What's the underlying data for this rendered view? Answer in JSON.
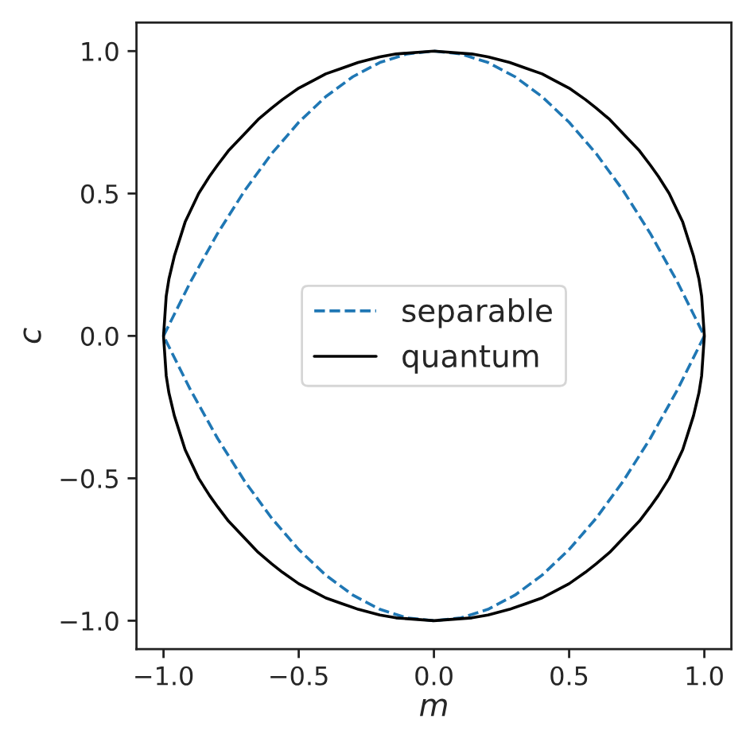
{
  "chart_data": {
    "type": "line",
    "xlabel": "m",
    "ylabel": "c",
    "xlim": [
      -1.1,
      1.1
    ],
    "ylim": [
      -1.1,
      1.1
    ],
    "xticks": [
      {
        "value": -1,
        "label": "−1.0"
      },
      {
        "value": -0.5,
        "label": "−0.5"
      },
      {
        "value": 0,
        "label": "0.0"
      },
      {
        "value": 0.5,
        "label": "0.5"
      },
      {
        "value": 1,
        "label": "1.0"
      }
    ],
    "yticks": [
      {
        "value": -1,
        "label": "−1.0"
      },
      {
        "value": -0.5,
        "label": "−0.5"
      },
      {
        "value": 0,
        "label": "0.0"
      },
      {
        "value": 0.5,
        "label": "0.5"
      },
      {
        "value": 1,
        "label": "1.0"
      }
    ],
    "legend": "center",
    "series": [
      {
        "name": "separable",
        "color": "#1f77b4",
        "line_style": "dashed",
        "x": [
          -1.0,
          -0.9,
          -0.8,
          -0.7,
          -0.6,
          -0.5,
          -0.4,
          -0.3,
          -0.2,
          -0.1,
          0,
          0.1,
          0.2,
          0.3,
          0.4,
          0.5,
          0.6,
          0.7,
          0.8,
          0.9,
          1.0,
          null,
          1.0,
          0.9,
          0.8,
          0.7,
          0.6,
          0.5,
          0.4,
          0.3,
          0.2,
          0.1,
          0,
          -0.1,
          -0.2,
          -0.3,
          -0.4,
          -0.5,
          -0.6,
          -0.7,
          -0.8,
          -0.9,
          -1.0
        ],
        "values": [
          0,
          0.19,
          0.36,
          0.51,
          0.64,
          0.75,
          0.84,
          0.91,
          0.96,
          0.99,
          1.0,
          0.99,
          0.96,
          0.91,
          0.84,
          0.75,
          0.64,
          0.51,
          0.36,
          0.19,
          0,
          null,
          0,
          -0.19,
          -0.36,
          -0.51,
          -0.64,
          -0.75,
          -0.84,
          -0.91,
          -0.96,
          -0.99,
          -1.0,
          -0.99,
          -0.96,
          -0.91,
          -0.84,
          -0.75,
          -0.64,
          -0.51,
          -0.36,
          -0.19,
          0
        ]
      },
      {
        "name": "quantum",
        "color": "#000000",
        "line_style": "solid",
        "x": [
          -1.0,
          -0.99,
          -0.98,
          -0.96,
          -0.94,
          -0.92,
          -0.9,
          -0.87,
          -0.83,
          -0.8,
          -0.76,
          -0.71,
          -0.65,
          -0.6,
          -0.56,
          -0.5,
          -0.44,
          -0.4,
          -0.34,
          -0.28,
          -0.2,
          -0.14,
          0,
          0.14,
          0.2,
          0.28,
          0.34,
          0.4,
          0.44,
          0.5,
          0.56,
          0.6,
          0.65,
          0.71,
          0.76,
          0.8,
          0.83,
          0.87,
          0.9,
          0.92,
          0.94,
          0.96,
          0.98,
          0.99,
          1.0,
          null,
          1.0,
          0.99,
          0.98,
          0.96,
          0.94,
          0.92,
          0.9,
          0.87,
          0.83,
          0.8,
          0.76,
          0.71,
          0.65,
          0.6,
          0.56,
          0.5,
          0.44,
          0.4,
          0.34,
          0.28,
          0.2,
          0.14,
          0,
          -0.14,
          -0.2,
          -0.28,
          -0.34,
          -0.4,
          -0.44,
          -0.5,
          -0.56,
          -0.6,
          -0.65,
          -0.71,
          -0.76,
          -0.8,
          -0.83,
          -0.87,
          -0.9,
          -0.92,
          -0.94,
          -0.96,
          -0.98,
          -0.99,
          -1.0
        ],
        "values": [
          0,
          0.14,
          0.2,
          0.28,
          0.34,
          0.4,
          0.44,
          0.5,
          0.56,
          0.6,
          0.65,
          0.7,
          0.76,
          0.8,
          0.83,
          0.87,
          0.9,
          0.92,
          0.94,
          0.96,
          0.98,
          0.99,
          1.0,
          0.99,
          0.98,
          0.96,
          0.94,
          0.92,
          0.9,
          0.87,
          0.83,
          0.8,
          0.76,
          0.7,
          0.65,
          0.6,
          0.56,
          0.5,
          0.44,
          0.4,
          0.34,
          0.28,
          0.2,
          0.14,
          0,
          null,
          0,
          -0.14,
          -0.2,
          -0.28,
          -0.34,
          -0.4,
          -0.44,
          -0.5,
          -0.56,
          -0.6,
          -0.65,
          -0.7,
          -0.76,
          -0.8,
          -0.83,
          -0.87,
          -0.9,
          -0.92,
          -0.94,
          -0.96,
          -0.98,
          -0.99,
          -1.0,
          -0.99,
          -0.98,
          -0.96,
          -0.94,
          -0.92,
          -0.9,
          -0.87,
          -0.83,
          -0.8,
          -0.76,
          -0.7,
          -0.65,
          -0.6,
          -0.56,
          -0.5,
          -0.44,
          -0.4,
          -0.34,
          -0.28,
          -0.2,
          -0.14,
          0
        ]
      }
    ]
  }
}
